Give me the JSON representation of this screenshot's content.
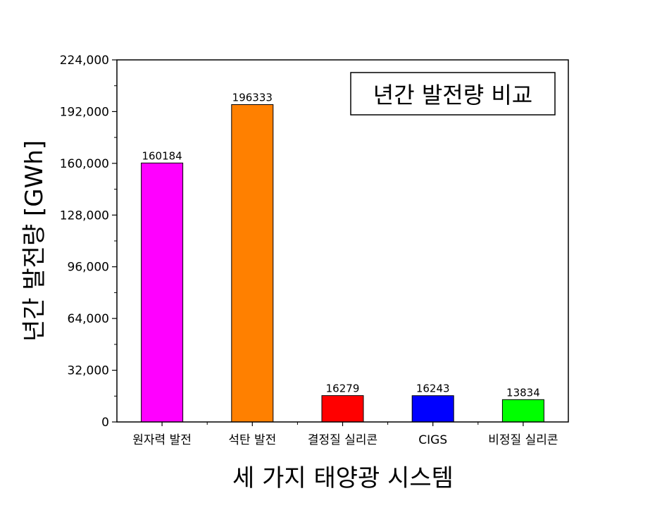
{
  "chart_data": {
    "type": "bar",
    "title": "년간 발전량 비교",
    "xlabel": "세 가지 태양광 시스템",
    "ylabel": "년간 발전량 [GWh]",
    "categories": [
      "원자력 발전",
      "석탄 발전",
      "결정질 실리콘",
      "CIGS",
      "비정질 실리콘"
    ],
    "values": [
      160184,
      196333,
      16279,
      16243,
      13834
    ],
    "value_labels": [
      "160184",
      "196333",
      "16279",
      "16243",
      "13834"
    ],
    "colors": [
      "#ff00ff",
      "#ff8000",
      "#ff0000",
      "#0000ff",
      "#00ff00"
    ],
    "ylim": [
      0,
      224000
    ],
    "yticks": [
      0,
      32000,
      64000,
      96000,
      128000,
      160000,
      192000,
      224000
    ],
    "ytick_labels": [
      "0",
      "32,000",
      "64,000",
      "96,000",
      "128,000",
      "160,000",
      "192,000",
      "224,000"
    ],
    "grid": false,
    "legend": "none"
  }
}
